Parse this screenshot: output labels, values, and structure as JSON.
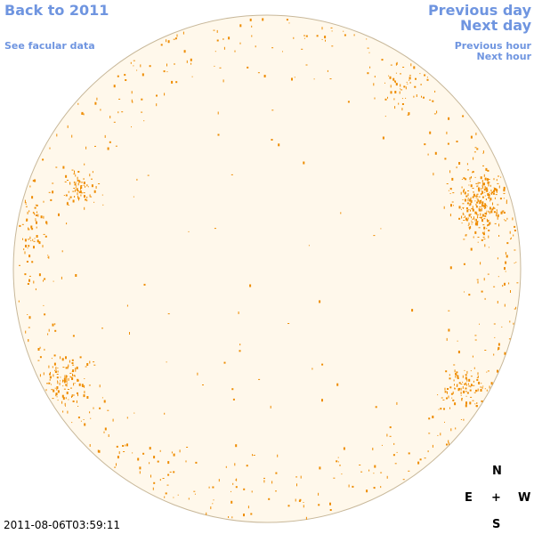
{
  "nav": {
    "back_label": "Back to 2011",
    "facular_label": "See facular data",
    "prev_day_label": "Previous day",
    "next_day_label": "Next day",
    "prev_hour_label": "Previous hour",
    "next_hour_label": "Next hour"
  },
  "compass": {
    "north": "N",
    "east": "E",
    "center": "+",
    "west": "W",
    "south": "S"
  },
  "timestamp": "2011-08-06T03:59:11",
  "colors": {
    "link": "#6f95e0",
    "disk_fill": "#fff8eb",
    "disk_outline": "#c8b89a",
    "facula": "#ee8c00"
  },
  "icons": {
    "sun_disk": "solar-disk-icon"
  }
}
